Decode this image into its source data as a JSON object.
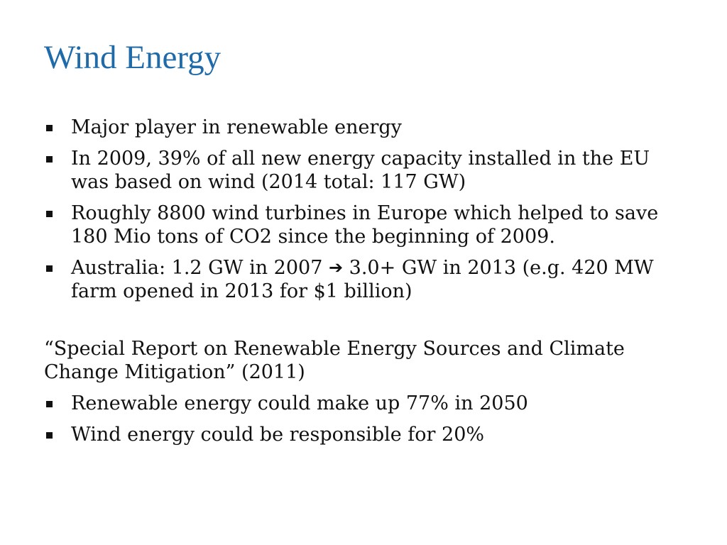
{
  "slide": {
    "title": "Wind Energy",
    "bullets": [
      {
        "text": "Major player in renewable energy"
      },
      {
        "text": "In 2009, 39% of all new energy capacity installed in the EU was based on wind (2014 total: 117 GW)"
      },
      {
        "text": "Roughly 8800 wind turbines in Europe which helped to save 180 Mio tons of CO2 since the beginning of 2009."
      },
      {
        "text_before": "Australia: 1.2 GW in 2007 ",
        "arrow": "➔",
        "text_after": " 3.0+ GW in 2013 (e.g. 420 MW farm opened in 2013 for $1 billion)"
      }
    ],
    "report": {
      "heading": "“Special Report on Renewable Energy Sources and Climate Change Mitigation” (2011)",
      "bullets": [
        {
          "text": "Renewable energy could make up 77% in 2050"
        },
        {
          "text": "Wind energy could be responsible for 20%"
        }
      ]
    }
  }
}
